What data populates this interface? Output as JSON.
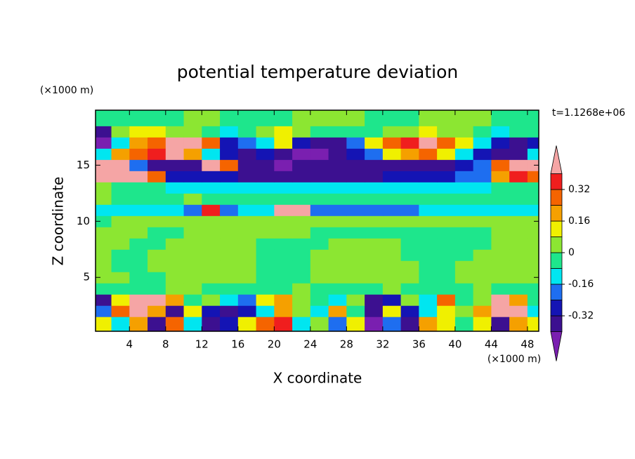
{
  "chart_data": {
    "type": "contour",
    "title": "potential temperature deviation",
    "x_label": "X coordinate",
    "y_label": "Z coordinate",
    "x_units": "(×1000 m)",
    "y_units": "(×1000 m)",
    "annotation": "t=1.1268e+06",
    "xlim": [
      0.25,
      49.25
    ],
    "ylim": [
      0.2,
      19.9
    ],
    "xticks": [
      4,
      8,
      12,
      16,
      20,
      24,
      28,
      32,
      36,
      40,
      44,
      48
    ],
    "yticks": [
      5,
      10,
      15
    ],
    "x": [
      1,
      3,
      5,
      7,
      9,
      11,
      13,
      15,
      17,
      19,
      21,
      23,
      25,
      27,
      29,
      31,
      33,
      35,
      37,
      39,
      41,
      43,
      45,
      47,
      49
    ],
    "y": [
      1,
      2,
      3,
      4,
      5,
      6,
      7,
      8,
      9,
      10,
      11,
      12,
      13,
      14,
      15,
      16,
      17,
      18,
      19
    ],
    "values": [
      [
        0.12,
        -0.12,
        0.2,
        -0.36,
        0.28,
        -0.12,
        -0.36,
        -0.28,
        0.12,
        0.28,
        0.36,
        -0.12,
        0.04,
        -0.2,
        0.12,
        -0.45,
        -0.2,
        -0.36,
        0.2,
        0.12,
        -0.04,
        0.12,
        -0.36,
        0.2,
        0.12
      ],
      [
        -0.2,
        0.28,
        0.45,
        0.2,
        -0.36,
        0.12,
        -0.28,
        -0.36,
        -0.28,
        -0.12,
        0.2,
        0.04,
        -0.12,
        0.2,
        -0.04,
        -0.36,
        0.12,
        -0.28,
        -0.12,
        0.12,
        0.04,
        0.2,
        0.45,
        0.45,
        -0.12
      ],
      [
        -0.36,
        0.12,
        0.45,
        0.45,
        0.2,
        -0.04,
        0.04,
        -0.12,
        -0.2,
        0.12,
        0.2,
        0.04,
        -0.04,
        -0.12,
        0.04,
        -0.36,
        -0.28,
        0.04,
        -0.12,
        0.28,
        -0.04,
        0.04,
        0.45,
        0.2,
        -0.04
      ],
      [
        -0.04,
        -0.04,
        -0.04,
        -0.04,
        0.04,
        0.04,
        -0.04,
        -0.04,
        -0.04,
        -0.04,
        -0.04,
        0.04,
        -0.04,
        -0.04,
        -0.04,
        -0.04,
        0.04,
        -0.04,
        -0.04,
        -0.04,
        -0.04,
        0.04,
        -0.04,
        -0.04,
        -0.04
      ],
      [
        0.04,
        0.04,
        -0.04,
        -0.04,
        0.04,
        0.04,
        0.04,
        0.04,
        0.04,
        -0.04,
        -0.04,
        -0.04,
        0.04,
        0.04,
        0.04,
        0.04,
        0.04,
        0.04,
        -0.04,
        -0.04,
        0.04,
        0.04,
        0.04,
        0.04,
        0.04
      ],
      [
        0.04,
        -0.04,
        -0.04,
        0.04,
        0.04,
        0.04,
        0.04,
        0.04,
        0.04,
        -0.04,
        -0.04,
        -0.04,
        0.04,
        0.04,
        0.04,
        0.04,
        0.04,
        0.04,
        -0.04,
        -0.04,
        0.04,
        0.04,
        0.04,
        0.04,
        0.04
      ],
      [
        0.04,
        -0.04,
        -0.04,
        0.04,
        0.04,
        0.04,
        0.04,
        0.04,
        0.04,
        -0.04,
        -0.04,
        -0.04,
        0.04,
        0.04,
        0.04,
        0.04,
        0.04,
        -0.04,
        -0.04,
        -0.04,
        -0.04,
        0.04,
        0.04,
        0.04,
        0.04
      ],
      [
        0.04,
        0.04,
        -0.04,
        -0.04,
        0.04,
        0.04,
        0.04,
        0.04,
        0.04,
        -0.04,
        -0.04,
        -0.04,
        -0.04,
        0.04,
        0.04,
        0.04,
        0.04,
        -0.04,
        -0.04,
        -0.04,
        -0.04,
        -0.04,
        0.04,
        0.04,
        0.04
      ],
      [
        0.04,
        0.04,
        0.04,
        -0.04,
        -0.04,
        0.04,
        0.04,
        0.04,
        0.04,
        0.04,
        0.04,
        0.04,
        -0.04,
        -0.04,
        -0.04,
        -0.04,
        -0.04,
        -0.04,
        -0.04,
        -0.04,
        -0.04,
        -0.04,
        0.04,
        0.04,
        0.04
      ],
      [
        -0.04,
        0.04,
        0.04,
        0.04,
        0.04,
        0.04,
        0.04,
        0.04,
        0.04,
        0.04,
        0.04,
        0.04,
        0.04,
        0.04,
        0.04,
        0.04,
        0.04,
        0.04,
        0.04,
        0.04,
        0.04,
        0.04,
        0.04,
        0.04,
        0.04
      ],
      [
        -0.12,
        -0.12,
        -0.12,
        -0.12,
        -0.12,
        -0.2,
        0.36,
        -0.2,
        -0.12,
        -0.12,
        0.45,
        0.45,
        -0.2,
        -0.2,
        -0.2,
        -0.2,
        -0.2,
        -0.2,
        -0.12,
        -0.12,
        -0.12,
        -0.12,
        -0.12,
        -0.12,
        -0.12
      ],
      [
        0.04,
        -0.04,
        -0.04,
        -0.04,
        -0.04,
        0.04,
        -0.04,
        -0.04,
        -0.04,
        -0.04,
        -0.04,
        -0.04,
        -0.04,
        -0.04,
        -0.04,
        -0.04,
        -0.04,
        -0.04,
        -0.04,
        -0.04,
        -0.04,
        -0.04,
        -0.04,
        -0.04,
        -0.04
      ],
      [
        0.04,
        -0.04,
        -0.04,
        -0.04,
        -0.12,
        -0.12,
        -0.12,
        -0.12,
        -0.12,
        -0.12,
        -0.12,
        -0.12,
        -0.12,
        -0.12,
        -0.12,
        -0.12,
        -0.12,
        -0.12,
        -0.12,
        -0.12,
        -0.12,
        -0.12,
        -0.04,
        -0.04,
        -0.04
      ],
      [
        0.45,
        0.45,
        0.45,
        0.28,
        -0.28,
        -0.28,
        -0.28,
        -0.28,
        -0.36,
        -0.36,
        -0.36,
        -0.36,
        -0.36,
        -0.36,
        -0.36,
        -0.36,
        -0.28,
        -0.28,
        -0.28,
        -0.28,
        -0.2,
        -0.2,
        0.2,
        0.36,
        0.28
      ],
      [
        0.45,
        0.45,
        -0.2,
        -0.36,
        -0.36,
        -0.36,
        0.45,
        0.28,
        -0.36,
        -0.36,
        -0.45,
        -0.36,
        -0.36,
        -0.36,
        -0.36,
        -0.36,
        -0.36,
        -0.36,
        -0.36,
        -0.36,
        -0.28,
        -0.2,
        0.28,
        0.45,
        0.45
      ],
      [
        -0.12,
        0.2,
        0.28,
        0.36,
        0.45,
        0.2,
        -0.12,
        -0.28,
        -0.36,
        -0.28,
        -0.36,
        -0.45,
        -0.45,
        -0.36,
        -0.28,
        -0.2,
        0.12,
        0.2,
        0.28,
        0.12,
        -0.12,
        -0.28,
        -0.36,
        -0.36,
        -0.12
      ],
      [
        -0.45,
        -0.12,
        0.2,
        0.28,
        0.45,
        0.45,
        0.28,
        -0.28,
        -0.2,
        -0.12,
        0.12,
        -0.28,
        -0.36,
        -0.36,
        -0.2,
        0.12,
        0.28,
        0.36,
        0.45,
        0.28,
        0.12,
        -0.12,
        -0.28,
        -0.36,
        -0.28
      ],
      [
        -0.36,
        0.04,
        0.12,
        0.12,
        0.04,
        0.04,
        -0.04,
        -0.12,
        -0.04,
        0.04,
        0.12,
        0.04,
        -0.04,
        -0.04,
        -0.04,
        -0.04,
        0.04,
        0.04,
        0.12,
        0.04,
        0.04,
        -0.04,
        -0.12,
        -0.04,
        -0.04
      ],
      [
        -0.04,
        -0.04,
        -0.04,
        -0.04,
        -0.04,
        0.04,
        0.04,
        -0.04,
        -0.04,
        -0.04,
        -0.04,
        0.04,
        0.04,
        0.04,
        0.04,
        -0.04,
        -0.04,
        -0.04,
        0.04,
        0.04,
        0.04,
        0.04,
        -0.04,
        -0.04,
        -0.04
      ]
    ],
    "levels": [
      -0.4,
      -0.32,
      -0.24,
      -0.16,
      -0.08,
      0,
      0.08,
      0.16,
      0.24,
      0.32,
      0.4
    ],
    "colors": [
      "#7a1fb0",
      "#3c1090",
      "#1414b4",
      "#1e6ef0",
      "#00e6f0",
      "#1ee68c",
      "#8ce632",
      "#f0f000",
      "#f5a000",
      "#f56400",
      "#f01e1e",
      "#f5a5a5"
    ],
    "colorbar_ticks": [
      -0.32,
      -0.16,
      0,
      0.16,
      0.32
    ]
  }
}
